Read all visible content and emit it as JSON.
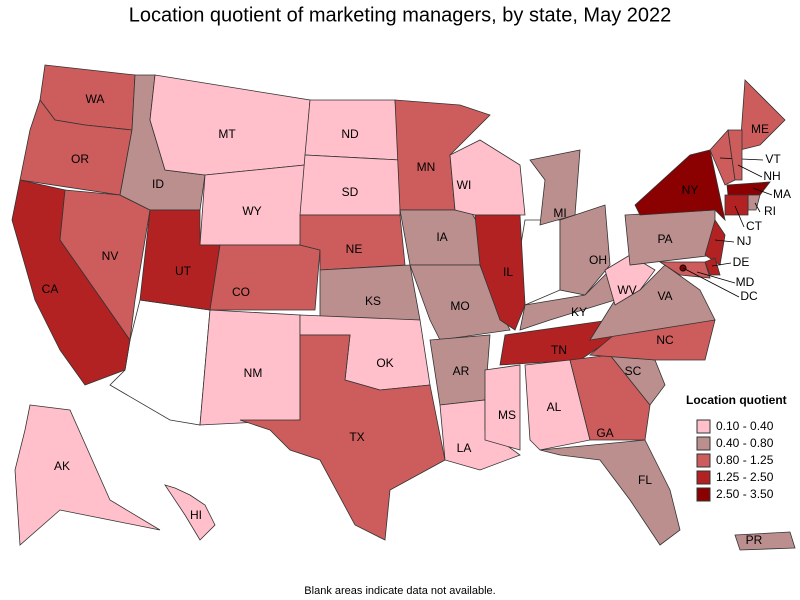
{
  "title": "Location quotient of marketing managers, by state, May 2022",
  "legend": {
    "title": "Location quotient",
    "items": [
      {
        "label": "0.10 - 0.40",
        "color": "#ffc0cb"
      },
      {
        "label": "0.40 - 0.80",
        "color": "#bc8f8f"
      },
      {
        "label": "0.80 - 1.25",
        "color": "#cd5c5c"
      },
      {
        "label": "1.25 - 2.50",
        "color": "#b22222"
      },
      {
        "label": "2.50 - 3.50",
        "color": "#8b0000"
      }
    ]
  },
  "states": [
    {
      "label": "WA",
      "color": "#cd5c5c"
    },
    {
      "label": "OR",
      "color": "#cd5c5c"
    },
    {
      "label": "CA",
      "color": "#b22222"
    },
    {
      "label": "NV",
      "color": "#cd5c5c"
    },
    {
      "label": "ID",
      "color": "#bc8f8f"
    },
    {
      "label": "MT",
      "color": "#ffc0cb"
    },
    {
      "label": "WY",
      "color": "#ffc0cb"
    },
    {
      "label": "UT",
      "color": "#b22222"
    },
    {
      "label": "CO",
      "color": "#cd5c5c"
    },
    {
      "label": "NM",
      "color": "#ffc0cb"
    },
    {
      "label": "ND",
      "color": "#ffc0cb"
    },
    {
      "label": "SD",
      "color": "#ffc0cb"
    },
    {
      "label": "NE",
      "color": "#cd5c5c"
    },
    {
      "label": "KS",
      "color": "#bc8f8f"
    },
    {
      "label": "OK",
      "color": "#ffc0cb"
    },
    {
      "label": "TX",
      "color": "#cd5c5c"
    },
    {
      "label": "MN",
      "color": "#cd5c5c"
    },
    {
      "label": "IA",
      "color": "#bc8f8f"
    },
    {
      "label": "MO",
      "color": "#bc8f8f"
    },
    {
      "label": "AR",
      "color": "#bc8f8f"
    },
    {
      "label": "LA",
      "color": "#ffc0cb"
    },
    {
      "label": "WI",
      "color": "#ffc0cb"
    },
    {
      "label": "IL",
      "color": "#b22222"
    },
    {
      "label": "MI",
      "color": "#bc8f8f"
    },
    {
      "label": "OH",
      "color": "#bc8f8f"
    },
    {
      "label": "KY",
      "color": "#bc8f8f"
    },
    {
      "label": "TN",
      "color": "#b22222"
    },
    {
      "label": "MS",
      "color": "#ffc0cb"
    },
    {
      "label": "AL",
      "color": "#ffc0cb"
    },
    {
      "label": "GA",
      "color": "#cd5c5c"
    },
    {
      "label": "FL",
      "color": "#bc8f8f"
    },
    {
      "label": "SC",
      "color": "#bc8f8f"
    },
    {
      "label": "NC",
      "color": "#cd5c5c"
    },
    {
      "label": "VA",
      "color": "#bc8f8f"
    },
    {
      "label": "WV",
      "color": "#ffc0cb"
    },
    {
      "label": "PA",
      "color": "#bc8f8f"
    },
    {
      "label": "NY",
      "color": "#8b0000"
    },
    {
      "label": "NJ",
      "color": "#b22222"
    },
    {
      "label": "DE",
      "color": "#b22222"
    },
    {
      "label": "MD",
      "color": "#cd5c5c"
    },
    {
      "label": "DC",
      "color": "#8b0000"
    },
    {
      "label": "ME",
      "color": "#cd5c5c"
    },
    {
      "label": "VT",
      "color": "#cd5c5c"
    },
    {
      "label": "NH",
      "color": "#cd5c5c"
    },
    {
      "label": "MA",
      "color": "#8b0000"
    },
    {
      "label": "RI",
      "color": "#bc8f8f"
    },
    {
      "label": "CT",
      "color": "#b22222"
    },
    {
      "label": "AK",
      "color": "#ffc0cb"
    },
    {
      "label": "HI",
      "color": "#ffc0cb"
    },
    {
      "label": "PR",
      "color": "#bc8f8f"
    }
  ],
  "footnote": "Blank areas indicate data not available."
}
